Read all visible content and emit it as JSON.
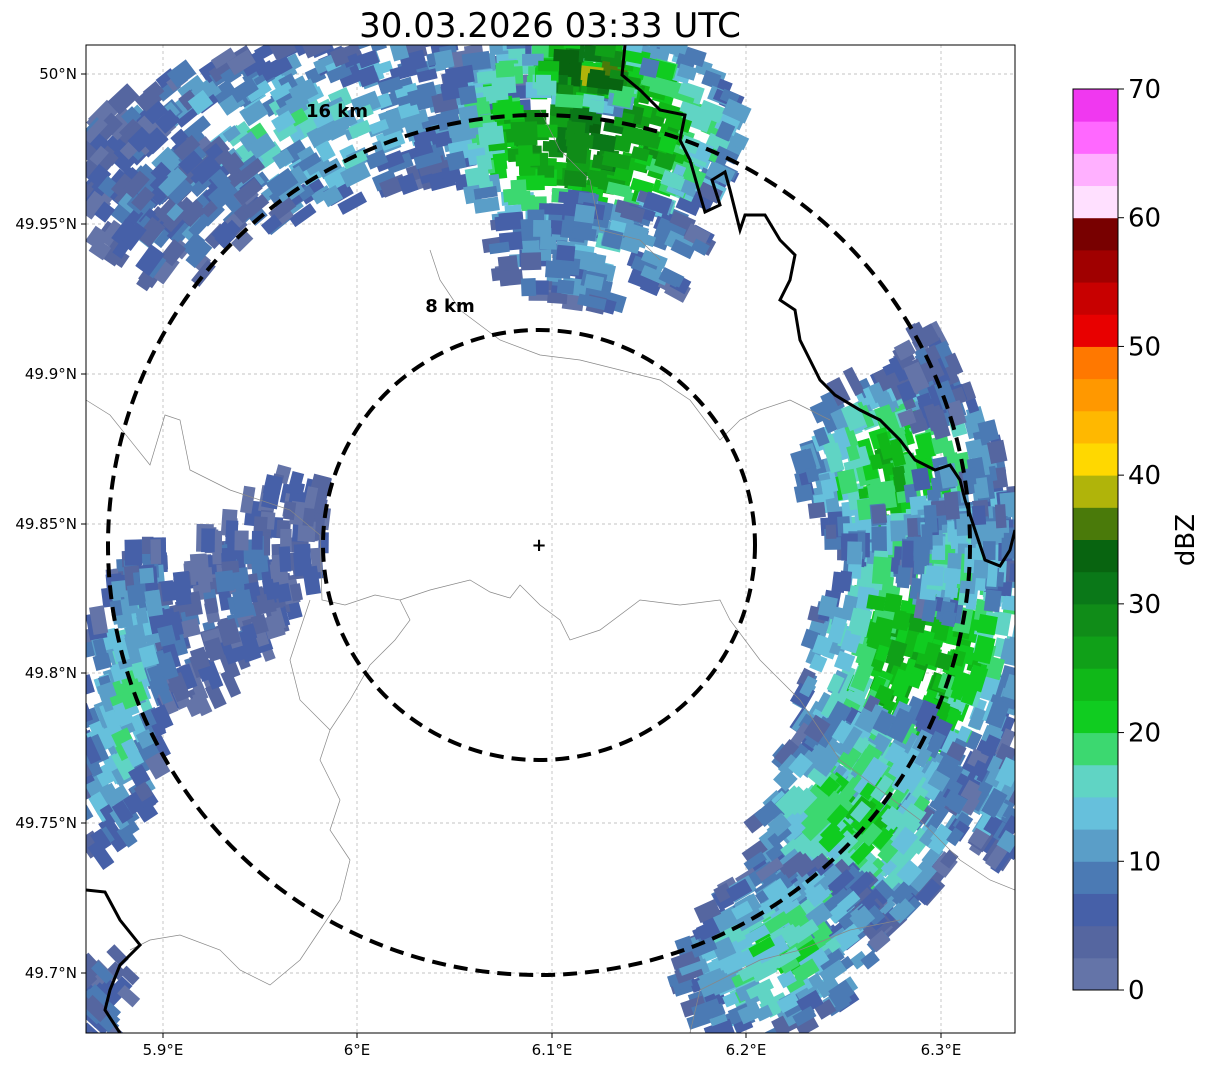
{
  "title": "30.03.2026 03:33 UTC",
  "x_ticks": [
    "5.9°E",
    "6°E",
    "6.1°E",
    "6.2°E",
    "6.3°E"
  ],
  "y_ticks": [
    "50°N",
    "49.95°N",
    "49.9°N",
    "49.85°N",
    "49.8°N",
    "49.75°N",
    "49.7°N"
  ],
  "rings": [
    {
      "label": "8 km"
    },
    {
      "label": "16 km"
    }
  ],
  "radar_site_marker": "+",
  "colorbar": {
    "label": "dBZ",
    "ticks": [
      "0",
      "10",
      "20",
      "30",
      "40",
      "50",
      "60",
      "70"
    ],
    "range": [
      0,
      70
    ],
    "step": 2.5,
    "colors": [
      "#6474a8",
      "#5566a0",
      "#4660a8",
      "#4b7ab4",
      "#5a9ec8",
      "#66c0dc",
      "#60d4c4",
      "#3cd870",
      "#10cc20",
      "#10b818",
      "#10a018",
      "#108c18",
      "#0a7818",
      "#086410",
      "#4a7a0a",
      "#b0b40a",
      "#ffd800",
      "#ffb800",
      "#ff9800",
      "#ff7800",
      "#e80000",
      "#c80000",
      "#a00000",
      "#780000",
      "#ffe0ff",
      "#ffb0ff",
      "#ff68ff",
      "#f038f0"
    ]
  }
}
